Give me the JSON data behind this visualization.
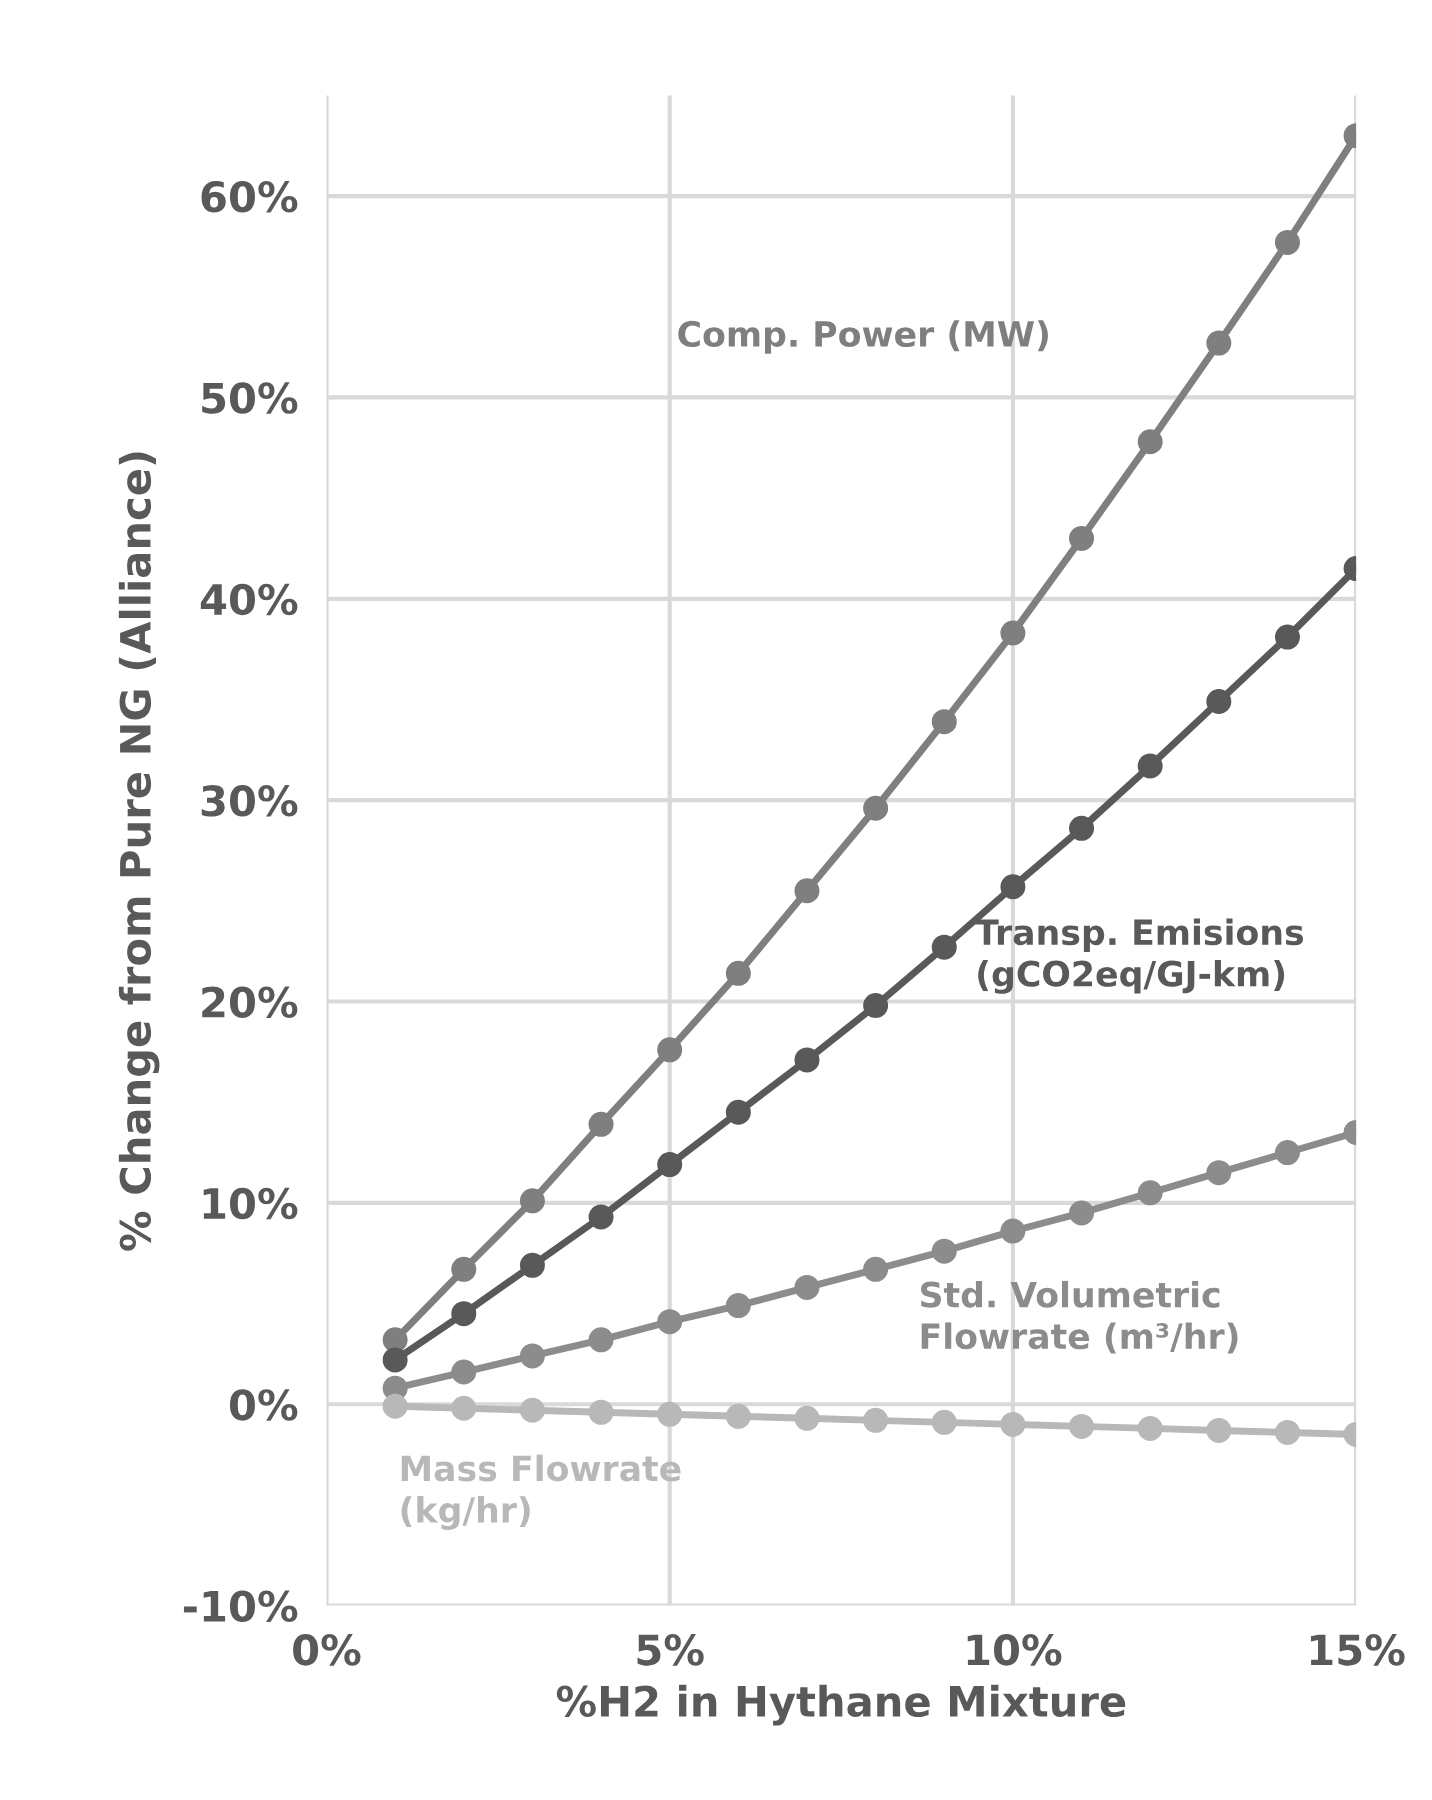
{
  "chart_data": {
    "type": "line",
    "xlabel": "%H2 in Hythane Mixture",
    "ylabel": "% Change from Pure NG (Alliance)",
    "x": [
      1,
      2,
      3,
      4,
      5,
      6,
      7,
      8,
      9,
      10,
      11,
      12,
      13,
      14,
      15
    ],
    "series": [
      {
        "name": "Comp. Power (MW)",
        "color": "#7f7f7f",
        "values": [
          3.2,
          6.7,
          10.1,
          13.9,
          17.6,
          21.4,
          25.5,
          29.6,
          33.9,
          38.3,
          43.0,
          47.8,
          52.7,
          57.7,
          63.0
        ]
      },
      {
        "name": "Transp. Emisions (gCO2eq/GJ-km)",
        "color": "#595959",
        "values": [
          2.2,
          4.5,
          6.9,
          9.3,
          11.9,
          14.5,
          17.1,
          19.8,
          22.7,
          25.7,
          28.6,
          31.7,
          34.9,
          38.1,
          41.5
        ]
      },
      {
        "name": "Std. Volumetric Flowrate (m³/hr)",
        "color": "#8c8c8c",
        "values": [
          0.8,
          1.6,
          2.4,
          3.2,
          4.1,
          4.9,
          5.8,
          6.7,
          7.6,
          8.6,
          9.5,
          10.5,
          11.5,
          12.5,
          13.5
        ]
      },
      {
        "name": "Mass Flowrate (kg/hr)",
        "color": "#b8b8b8",
        "values": [
          -0.1,
          -0.2,
          -0.3,
          -0.4,
          -0.5,
          -0.6,
          -0.7,
          -0.8,
          -0.9,
          -1.0,
          -1.1,
          -1.2,
          -1.3,
          -1.4,
          -1.5
        ]
      }
    ],
    "xlim": [
      0,
      15
    ],
    "ylim": [
      -10,
      65
    ],
    "xticks": [
      {
        "value": 0,
        "label": "0%"
      },
      {
        "value": 5,
        "label": "5%"
      },
      {
        "value": 10,
        "label": "10%"
      },
      {
        "value": 15,
        "label": "15%"
      }
    ],
    "yticks": [
      {
        "value": -10,
        "label": "-10%"
      },
      {
        "value": 0,
        "label": "0%"
      },
      {
        "value": 10,
        "label": "10%"
      },
      {
        "value": 20,
        "label": "20%"
      },
      {
        "value": 30,
        "label": "30%"
      },
      {
        "value": 40,
        "label": "40%"
      },
      {
        "value": 50,
        "label": "50%"
      },
      {
        "value": 60,
        "label": "60%"
      }
    ],
    "grid": true,
    "marker": "circle",
    "line_style": "solid"
  }
}
